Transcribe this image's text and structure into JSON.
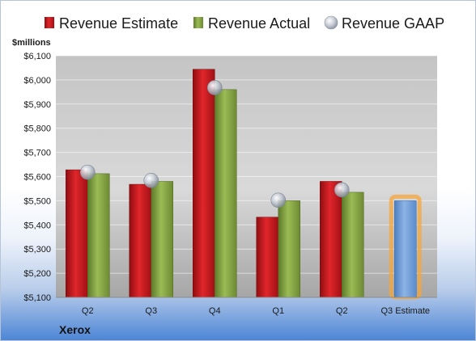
{
  "chart_data": {
    "type": "bar",
    "company": "Xerox",
    "ylabel": "$millions",
    "categories": [
      "Q2",
      "Q3",
      "Q4",
      "Q1",
      "Q2",
      "Q3 Estimate"
    ],
    "ylim": [
      5100,
      6100
    ],
    "yticks": [
      5100,
      5200,
      5300,
      5400,
      5500,
      5600,
      5700,
      5800,
      5900,
      6000,
      6100
    ],
    "ytick_labels": [
      "$5,100",
      "$5,200",
      "$5,300",
      "$5,400",
      "$5,500",
      "$5,600",
      "$5,700",
      "$5,800",
      "$5,900",
      "$6,000",
      "$6,100"
    ],
    "legend_position": "top",
    "grid": true,
    "series": [
      {
        "name": "Revenue Estimate",
        "kind": "bar",
        "color": "#c0161c",
        "values": [
          5628,
          5568,
          6044,
          5432,
          5580,
          null
        ]
      },
      {
        "name": "Revenue Actual",
        "kind": "bar",
        "color": "#7d9a3d",
        "values": [
          5612,
          5580,
          5960,
          5500,
          5535,
          null
        ]
      },
      {
        "name": "Revenue GAAP",
        "kind": "marker",
        "color": "#b8c0cc",
        "values": [
          5618,
          5584,
          5968,
          5502,
          5545,
          null
        ]
      },
      {
        "name": "",
        "kind": "estimate-bar",
        "color": "#6f9fd8",
        "values": [
          null,
          null,
          null,
          null,
          null,
          5500
        ]
      }
    ]
  }
}
